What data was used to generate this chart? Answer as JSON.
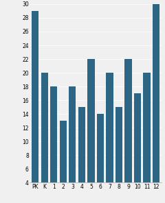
{
  "categories": [
    "PK",
    "K",
    "1",
    "2",
    "3",
    "4",
    "5",
    "6",
    "7",
    "8",
    "9",
    "10",
    "11",
    "12"
  ],
  "values": [
    29,
    20,
    18,
    13,
    18,
    15,
    22,
    14,
    20,
    15,
    22,
    17,
    20,
    30
  ],
  "bar_color": "#2d6584",
  "ylim": [
    4,
    30
  ],
  "yticks": [
    4,
    6,
    8,
    10,
    12,
    14,
    16,
    18,
    20,
    22,
    24,
    26,
    28,
    30
  ],
  "background_color": "#f0f0f0",
  "tick_fontsize": 5.5,
  "bar_width": 0.75
}
